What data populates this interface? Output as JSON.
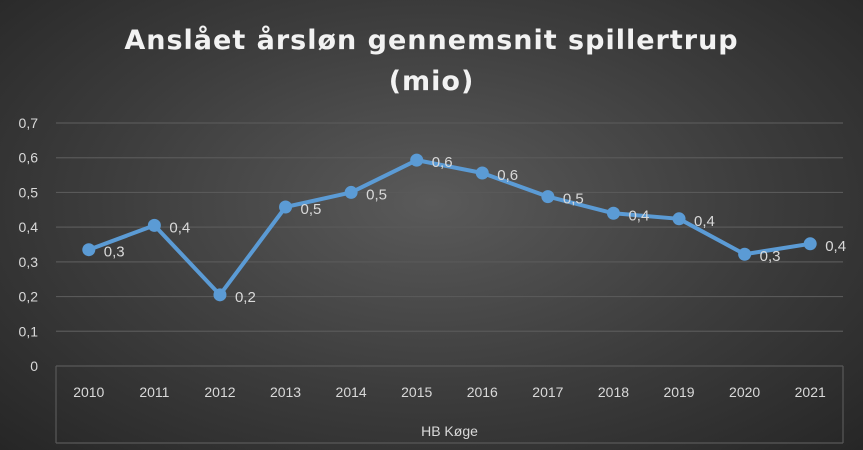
{
  "chart_data": {
    "type": "line",
    "title": "Anslået årsløn gennemsnit spillertrup (mio)",
    "title_lines": [
      "Anslået årsløn gennemsnit spillertrup",
      "(mio)"
    ],
    "categories": [
      "2010",
      "2011",
      "2012",
      "2013",
      "2014",
      "2015",
      "2016",
      "2017",
      "2018",
      "2019",
      "2020",
      "2021"
    ],
    "category_group": "HB Køge",
    "series": [
      {
        "values": [
          0.335,
          0.405,
          0.205,
          0.458,
          0.5,
          0.593,
          0.556,
          0.488,
          0.44,
          0.424,
          0.322,
          0.352
        ],
        "data_labels": [
          "0,3",
          "0,4",
          "0,2",
          "0,5",
          "0,5",
          "0,6",
          "0,6",
          "0,5",
          "0,4",
          "0,4",
          "0,3",
          "0,4"
        ],
        "color": "#5b9bd5"
      }
    ],
    "yticks": [
      "0",
      "0,1",
      "0,2",
      "0,3",
      "0,4",
      "0,5",
      "0,6",
      "0,7"
    ],
    "ylim": [
      0,
      0.7
    ],
    "grid": true,
    "legend": "none",
    "background": "#3a3a3a",
    "gridline_color": "#595959",
    "text_color": "#d9d9d9"
  }
}
